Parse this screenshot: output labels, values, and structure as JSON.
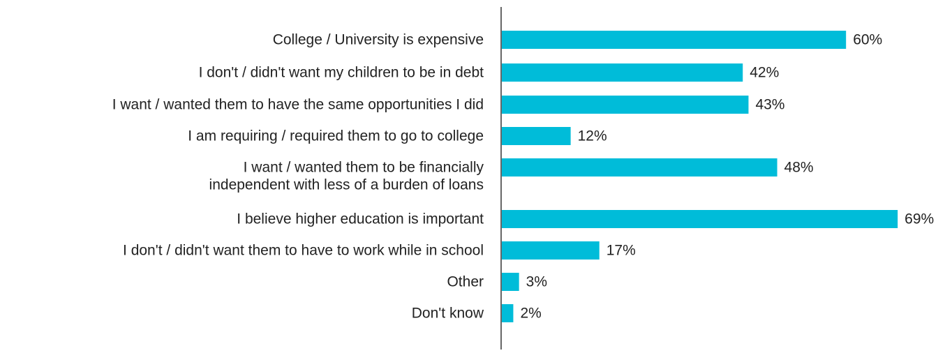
{
  "chart_data": {
    "type": "bar",
    "orientation": "horizontal",
    "title": "",
    "xlabel": "",
    "ylabel": "",
    "categories": [
      "College / University is expensive",
      "I don't / didn't want my children to be in debt",
      "I want / wanted them to have the same opportunities I did",
      "I am requiring / required them to go to college",
      "I want / wanted them to be financially\nindependent with less of a burden of loans",
      "I believe higher education is important",
      "I don't / didn't want them to have to work while in school",
      "Other",
      "Don't know"
    ],
    "values": [
      60,
      42,
      43,
      12,
      48,
      69,
      17,
      3,
      2
    ],
    "data_labels": [
      "60%",
      "42%",
      "43%",
      "12%",
      "48%",
      "69%",
      "17%",
      "3%",
      "2%"
    ],
    "xlim": [
      0,
      100
    ],
    "grid": false,
    "legend": "none",
    "colors": {
      "bar": "#00BCD9",
      "axis": "#333333",
      "text": "#222222"
    }
  }
}
